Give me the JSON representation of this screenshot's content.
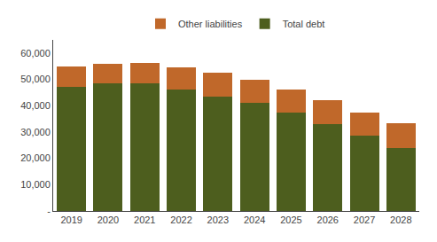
{
  "chart_data": {
    "type": "bar",
    "stacked": true,
    "categories": [
      "2019",
      "2020",
      "2021",
      "2022",
      "2023",
      "2024",
      "2025",
      "2026",
      "2027",
      "2028"
    ],
    "series": [
      {
        "name": "Total debt",
        "color": "#4D5E1E",
        "values": [
          47000,
          48500,
          48500,
          46000,
          43500,
          41000,
          37500,
          33000,
          28500,
          24000
        ]
      },
      {
        "name": "Other liabilities",
        "color": "#C0682A",
        "values": [
          8000,
          7500,
          7700,
          8500,
          9000,
          9000,
          8500,
          9000,
          9000,
          9500
        ]
      }
    ],
    "ylim": [
      0,
      65000
    ],
    "yticks": [
      {
        "value": 0,
        "label": "-"
      },
      {
        "value": 10000,
        "label": "10,000"
      },
      {
        "value": 20000,
        "label": "20,000"
      },
      {
        "value": 30000,
        "label": "30,000"
      },
      {
        "value": 40000,
        "label": "40,000"
      },
      {
        "value": 50000,
        "label": "50,000"
      },
      {
        "value": 60000,
        "label": "60,000"
      }
    ],
    "grid": false,
    "legend": "top"
  }
}
